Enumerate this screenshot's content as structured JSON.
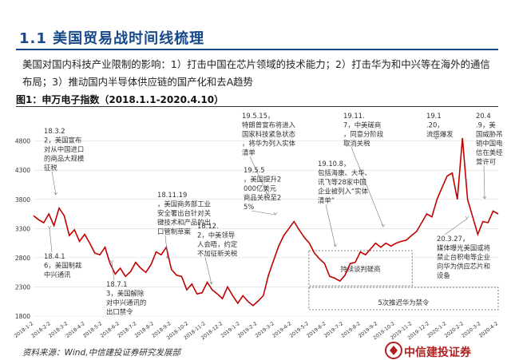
{
  "header": {
    "title": "1.1  美国贸易战时间线梳理",
    "intro": "美国对国内科技产业限制的影响：1）打击中国在芯片领域的技术能力；2）打击华为和中兴等在海外的通信布局；3）推动国内半导体供应链的国产化和去A趋势"
  },
  "figure": {
    "caption": "图1：申万电子指数（2018.1.1-2020.4.10）"
  },
  "footer": {
    "source": "资料来源：Wind,中信建投证券研究发展部",
    "logo_text": "中信建投证券"
  },
  "colors": {
    "line": "#c00000",
    "title": "#16498a",
    "logo": "#b21f1f"
  },
  "chart_data": {
    "type": "line",
    "title": "",
    "xlabel": "",
    "ylabel": "",
    "ylim": [
      1800,
      5000
    ],
    "yticks": [
      1800,
      2300,
      2800,
      3300,
      3800,
      4300,
      4800
    ],
    "x_tick_labels": [
      "2018-1-2",
      "2018-2-2",
      "2018-3-2",
      "2018-4-2",
      "2018-5-2",
      "2018-6-2",
      "2018-7-2",
      "2018-8-2",
      "2018-9-2",
      "2018-10-2",
      "2018-11-2",
      "2018-12-2",
      "2019-1-2",
      "2019-2-2",
      "2019-3-2",
      "2019-4-2",
      "2019-5-2",
      "2019-6-2",
      "2019-7-2",
      "2019-8-2",
      "2019-9-2",
      "2019-10-2",
      "2019-11-2",
      "2019-12-2",
      "2020-1-2",
      "2020-2-2",
      "2020-3-2",
      "2020-4-2"
    ],
    "series": [
      {
        "values": [
          3520,
          3450,
          3400,
          3550,
          3350,
          3650,
          3520,
          3180,
          3280,
          3080,
          3200,
          3050,
          2880,
          2850,
          2980,
          2700,
          2520,
          2620,
          2480,
          2560,
          2720,
          2620,
          2550,
          2680,
          2900,
          2850,
          2980,
          2600,
          2500,
          2480,
          2250,
          2350,
          2180,
          2200,
          2380,
          2250,
          2180,
          2100,
          2300,
          2150,
          2020,
          2150,
          2050,
          1980,
          2060,
          2150,
          2500,
          2750,
          3000,
          3180,
          3300,
          3420,
          3280,
          3150,
          3050,
          2880,
          2780,
          2700,
          2480,
          2450,
          2400,
          2500,
          2700,
          2720,
          2900,
          2850,
          2950,
          3050,
          2980,
          3050,
          3000,
          3050,
          3080,
          3100,
          3180,
          3250,
          3400,
          3550,
          3500,
          3800,
          4000,
          4200,
          4250,
          3800,
          4850,
          3800,
          3500,
          3200,
          3420,
          3400,
          3600,
          3550
        ]
      }
    ],
    "shaded_regions": [
      {
        "label": "持续谈判磋商",
        "from": "2019-5-2",
        "to": "2019-11-2"
      },
      {
        "label": "5次推迟华为禁令",
        "from": "2019-5-2",
        "to": "2020-4-2"
      }
    ],
    "annotations": [
      "18.3.22，美国宣布对从中国进口的商品大规模征税",
      "18.4.16，美国制裁中兴通讯",
      "18.7.13，美国解除对中兴通讯的出口禁令",
      "18.11.19，美国商务部工业安全署出台针对关键技术和产品的出口管制草案",
      "18.12.2，中美领导人会晤，约定不加征新关税",
      "19.5.15，特朗普宣布将进入国家科技紧急状态，将华为列入实体清单",
      "19.5.5，美国提升2000亿美元商品关税至25%",
      "19.10.8，包括海康、大华、讯飞等28家中国企业被列入“实体清单”",
      "19.11.7，中美磋商，同意分阶段取消关税",
      "19.1.20，流感爆发",
      "20.4.9，美国威胁吊销中国电信在美经营许可",
      "20.3.27，媒体曝光美国或将禁止台积电等企业向华为供应芯片和设备"
    ]
  }
}
